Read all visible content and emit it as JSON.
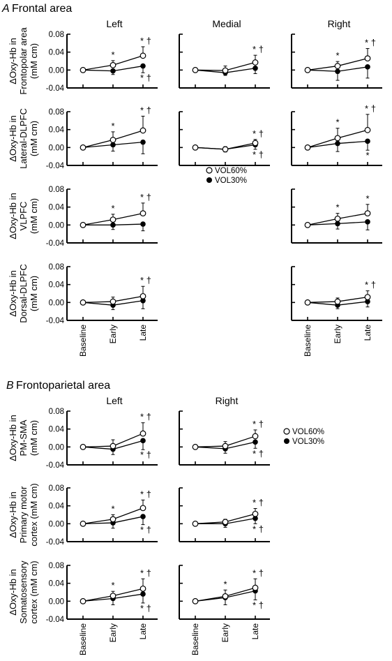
{
  "sections": [
    {
      "letter": "A",
      "title": "Frontal area"
    },
    {
      "letter": "B",
      "title": "Frontoparietal area"
    }
  ],
  "legends": [
    {
      "items": [
        {
          "marker": "open",
          "label": "VOL60%"
        },
        {
          "marker": "filled",
          "label": "VOL30%"
        }
      ]
    },
    {
      "items": [
        {
          "marker": "open",
          "label": "VOL60%"
        },
        {
          "marker": "filled",
          "label": "VOL30%"
        }
      ]
    }
  ],
  "chart_data": [
    {
      "type": "line",
      "section": "A",
      "column": "Left",
      "ylabel": [
        "ΔOxy-Hb in",
        "Frontopolar area",
        "(mM cm)"
      ],
      "x": [
        "Baseline",
        "Early",
        "Late"
      ],
      "ylim": [
        -0.04,
        0.08
      ],
      "yticks": [
        "0.08",
        "0.04",
        "0.00",
        "-0.04"
      ],
      "series": [
        {
          "name": "VOL60%",
          "marker": "open",
          "values": [
            0,
            0.011,
            0.032
          ],
          "errors": [
            0,
            0.01,
            0.02
          ]
        },
        {
          "name": "VOL30%",
          "marker": "filled",
          "values": [
            0,
            -0.002,
            0.009
          ],
          "errors": [
            0,
            0.008,
            0.015
          ]
        }
      ],
      "annotations": [
        {
          "x": "Early",
          "series": "VOL60%",
          "text": "*"
        },
        {
          "x": "Late",
          "series": "VOL60%",
          "text": "* †"
        },
        {
          "x": "Late",
          "series": "VOL30%",
          "text": "* †"
        }
      ]
    },
    {
      "type": "line",
      "section": "A",
      "column": "Medial",
      "ylabel": null,
      "x": [
        "Baseline",
        "Early",
        "Late"
      ],
      "ylim": [
        -0.04,
        0.08
      ],
      "yticks": null,
      "series": [
        {
          "name": "VOL60%",
          "marker": "open",
          "values": [
            0,
            -0.001,
            0.017
          ],
          "errors": [
            0,
            0.01,
            0.016
          ]
        },
        {
          "name": "VOL30%",
          "marker": "filled",
          "values": [
            0,
            -0.006,
            0.004
          ],
          "errors": [
            0,
            0.006,
            0.012
          ]
        }
      ],
      "annotations": [
        {
          "x": "Late",
          "series": "VOL60%",
          "text": "* †"
        }
      ]
    },
    {
      "type": "line",
      "section": "A",
      "column": "Right",
      "ylabel": null,
      "x": [
        "Baseline",
        "Early",
        "Late"
      ],
      "ylim": [
        -0.04,
        0.08
      ],
      "yticks": null,
      "series": [
        {
          "name": "VOL60%",
          "marker": "open",
          "values": [
            0,
            0.009,
            0.026
          ],
          "errors": [
            0,
            0.01,
            0.022
          ]
        },
        {
          "name": "VOL30%",
          "marker": "filled",
          "values": [
            0,
            -0.003,
            0.007
          ],
          "errors": [
            0,
            0.02,
            0.025
          ]
        }
      ],
      "annotations": [
        {
          "x": "Early",
          "series": "VOL60%",
          "text": "*"
        },
        {
          "x": "Late",
          "series": "VOL60%",
          "text": "* †"
        }
      ]
    },
    {
      "type": "line",
      "section": "A",
      "column": "Left",
      "ylabel": [
        "ΔOxy-Hb in",
        "Lateral-DLPFC",
        "(mM cm)"
      ],
      "x": [
        "Baseline",
        "Early",
        "Late"
      ],
      "ylim": [
        -0.04,
        0.08
      ],
      "yticks": [
        "0.08",
        "0.04",
        "0.00",
        "-0.04"
      ],
      "series": [
        {
          "name": "VOL60%",
          "marker": "open",
          "values": [
            0,
            0.017,
            0.038
          ],
          "errors": [
            0,
            0.018,
            0.032
          ]
        },
        {
          "name": "VOL30%",
          "marker": "filled",
          "values": [
            0,
            0.006,
            0.012
          ],
          "errors": [
            0,
            0.014,
            0.026
          ]
        }
      ],
      "annotations": [
        {
          "x": "Early",
          "series": "VOL60%",
          "text": "*"
        },
        {
          "x": "Late",
          "series": "VOL60%",
          "text": "* †"
        }
      ]
    },
    {
      "type": "line",
      "section": "A",
      "column": "Right",
      "ylabel": null,
      "x": [
        "Baseline",
        "Early",
        "Late"
      ],
      "ylim": [
        -0.04,
        0.08
      ],
      "yticks": null,
      "series": [
        {
          "name": "VOL60%",
          "marker": "open",
          "values": [
            0,
            0.021,
            0.039
          ],
          "errors": [
            0,
            0.022,
            0.035
          ]
        },
        {
          "name": "VOL30%",
          "marker": "filled",
          "values": [
            0,
            0.009,
            0.014
          ],
          "errors": [
            0,
            0.018,
            0.02
          ]
        }
      ],
      "annotations": [
        {
          "x": "Early",
          "series": "VOL60%",
          "text": "*"
        },
        {
          "x": "Late",
          "series": "VOL60%",
          "text": "* †"
        },
        {
          "x": "Late",
          "series": "VOL30%",
          "text": "*"
        }
      ]
    },
    {
      "type": "line",
      "section": "A",
      "column": "Left",
      "ylabel": [
        "ΔOxy-Hb in",
        "VLPFC",
        "(mM cm)"
      ],
      "x": [
        "Baseline",
        "Early",
        "Late"
      ],
      "ylim": [
        -0.04,
        0.08
      ],
      "yticks": [
        "0.08",
        "0.04",
        "0.00",
        "-0.04"
      ],
      "series": [
        {
          "name": "VOL60%",
          "marker": "open",
          "values": [
            0,
            0.012,
            0.026
          ],
          "errors": [
            0,
            0.012,
            0.023
          ]
        },
        {
          "name": "VOL30%",
          "marker": "filled",
          "values": [
            0,
            0.0,
            0.002
          ],
          "errors": [
            0,
            0.01,
            0.015
          ]
        }
      ],
      "annotations": [
        {
          "x": "Early",
          "series": "VOL60%",
          "text": "*"
        },
        {
          "x": "Late",
          "series": "VOL60%",
          "text": "* †"
        }
      ]
    },
    {
      "type": "line",
      "section": "A",
      "column": "Right",
      "ylabel": null,
      "x": [
        "Baseline",
        "Early",
        "Late"
      ],
      "ylim": [
        -0.04,
        0.08
      ],
      "yticks": null,
      "series": [
        {
          "name": "VOL60%",
          "marker": "open",
          "values": [
            0,
            0.014,
            0.026
          ],
          "errors": [
            0,
            0.012,
            0.02
          ]
        },
        {
          "name": "VOL30%",
          "marker": "filled",
          "values": [
            0,
            0.003,
            0.007
          ],
          "errors": [
            0,
            0.012,
            0.018
          ]
        }
      ],
      "annotations": [
        {
          "x": "Early",
          "series": "VOL60%",
          "text": "*"
        },
        {
          "x": "Late",
          "series": "VOL60%",
          "text": "*"
        }
      ]
    },
    {
      "type": "line",
      "section": "A",
      "column": "Left",
      "ylabel": [
        "ΔOxy-Hb in",
        "Dorsal-DLPFC",
        "(mM cm)"
      ],
      "x": [
        "Baseline",
        "Early",
        "Late"
      ],
      "ylim": [
        -0.04,
        0.08
      ],
      "yticks": [
        "0.08",
        "0.04",
        "0.00",
        "-0.04"
      ],
      "series": [
        {
          "name": "VOL60%",
          "marker": "open",
          "values": [
            0,
            0.002,
            0.014
          ],
          "errors": [
            0,
            0.01,
            0.022
          ]
        },
        {
          "name": "VOL30%",
          "marker": "filled",
          "values": [
            0,
            -0.006,
            0.004
          ],
          "errors": [
            0,
            0.01,
            0.018
          ]
        }
      ],
      "annotations": [
        {
          "x": "Late",
          "series": "VOL60%",
          "text": "* †"
        }
      ]
    },
    {
      "type": "line",
      "section": "A",
      "column": "Medial",
      "ylabel": null,
      "x": [
        "Baseline",
        "Early",
        "Late"
      ],
      "ylim": [
        -0.04,
        0.08
      ],
      "yticks": null,
      "series": [
        {
          "name": "VOL60%",
          "marker": "open",
          "values": [
            0,
            -0.004,
            0.01
          ],
          "errors": [
            0,
            0.006,
            0.008
          ]
        },
        {
          "name": "VOL30%",
          "marker": "filled",
          "values": [
            0,
            -0.004,
            0.006
          ],
          "errors": [
            0,
            0.006,
            0.01
          ]
        }
      ],
      "annotations": [
        {
          "x": "Late",
          "series": "VOL60%",
          "text": "* †"
        },
        {
          "x": "Late",
          "series": "VOL30%",
          "text": "* †"
        }
      ]
    },
    {
      "type": "line",
      "section": "A",
      "column": "Right",
      "ylabel": null,
      "x": [
        "Baseline",
        "Early",
        "Late"
      ],
      "ylim": [
        -0.04,
        0.08
      ],
      "yticks": null,
      "series": [
        {
          "name": "VOL60%",
          "marker": "open",
          "values": [
            0,
            0.002,
            0.012
          ],
          "errors": [
            0,
            0.008,
            0.014
          ]
        },
        {
          "name": "VOL30%",
          "marker": "filled",
          "values": [
            0,
            -0.006,
            0.002
          ],
          "errors": [
            0,
            0.008,
            0.012
          ]
        }
      ],
      "annotations": [
        {
          "x": "Late",
          "series": "VOL60%",
          "text": "* †"
        }
      ]
    },
    {
      "type": "line",
      "section": "B",
      "column": "Left",
      "ylabel": [
        "ΔOxy-Hb in",
        "PM-SMA",
        "(mM cm)"
      ],
      "x": [
        "Baseline",
        "Early",
        "Late"
      ],
      "ylim": [
        -0.04,
        0.08
      ],
      "yticks": [
        "0.08",
        "0.04",
        "0.00",
        "-0.04"
      ],
      "series": [
        {
          "name": "VOL60%",
          "marker": "open",
          "values": [
            0,
            0.002,
            0.03
          ],
          "errors": [
            0,
            0.014,
            0.024
          ]
        },
        {
          "name": "VOL30%",
          "marker": "filled",
          "values": [
            0,
            -0.005,
            0.014
          ],
          "errors": [
            0,
            0.012,
            0.02
          ]
        }
      ],
      "annotations": [
        {
          "x": "Late",
          "series": "VOL60%",
          "text": "* †"
        },
        {
          "x": "Late",
          "series": "VOL30%",
          "text": "* †"
        }
      ]
    },
    {
      "type": "line",
      "section": "B",
      "column": "Right",
      "ylabel": null,
      "x": [
        "Baseline",
        "Early",
        "Late"
      ],
      "ylim": [
        -0.04,
        0.08
      ],
      "yticks": null,
      "series": [
        {
          "name": "VOL60%",
          "marker": "open",
          "values": [
            0,
            0.002,
            0.024
          ],
          "errors": [
            0,
            0.01,
            0.014
          ]
        },
        {
          "name": "VOL30%",
          "marker": "filled",
          "values": [
            0,
            -0.004,
            0.011
          ],
          "errors": [
            0,
            0.01,
            0.014
          ]
        }
      ],
      "annotations": [
        {
          "x": "Late",
          "series": "VOL60%",
          "text": "* †"
        },
        {
          "x": "Late",
          "series": "VOL30%",
          "text": "* †"
        }
      ]
    },
    {
      "type": "line",
      "section": "B",
      "column": "Left",
      "ylabel": [
        "ΔOxy-Hb in",
        "Primary motor",
        "cortex (mM cm)"
      ],
      "x": [
        "Baseline",
        "Early",
        "Late"
      ],
      "ylim": [
        -0.04,
        0.08
      ],
      "yticks": [
        "0.08",
        "0.04",
        "0.00",
        "-0.04"
      ],
      "series": [
        {
          "name": "VOL60%",
          "marker": "open",
          "values": [
            0,
            0.01,
            0.035
          ],
          "errors": [
            0,
            0.01,
            0.018
          ]
        },
        {
          "name": "VOL30%",
          "marker": "filled",
          "values": [
            0,
            0.002,
            0.016
          ],
          "errors": [
            0,
            0.012,
            0.018
          ]
        }
      ],
      "annotations": [
        {
          "x": "Early",
          "series": "VOL60%",
          "text": "*"
        },
        {
          "x": "Late",
          "series": "VOL60%",
          "text": "* †"
        },
        {
          "x": "Late",
          "series": "VOL30%",
          "text": "* †"
        }
      ]
    },
    {
      "type": "line",
      "section": "B",
      "column": "Right",
      "ylabel": null,
      "x": [
        "Baseline",
        "Early",
        "Late"
      ],
      "ylim": [
        -0.04,
        0.08
      ],
      "yticks": null,
      "series": [
        {
          "name": "VOL60%",
          "marker": "open",
          "values": [
            0,
            0.004,
            0.022
          ],
          "errors": [
            0,
            0.006,
            0.012
          ]
        },
        {
          "name": "VOL30%",
          "marker": "filled",
          "values": [
            0,
            0.0,
            0.012
          ],
          "errors": [
            0,
            0.008,
            0.012
          ]
        }
      ],
      "annotations": [
        {
          "x": "Late",
          "series": "VOL60%",
          "text": "* †"
        },
        {
          "x": "Late",
          "series": "VOL30%",
          "text": "* †"
        }
      ]
    },
    {
      "type": "line",
      "section": "B",
      "column": "Left",
      "ylabel": [
        "ΔOxy-Hb in",
        "Somatosensory",
        "cortex (mM cm)"
      ],
      "x": [
        "Baseline",
        "Early",
        "Late"
      ],
      "ylim": [
        -0.04,
        0.08
      ],
      "yticks": [
        "0.08",
        "0.04",
        "0.00",
        "-0.04"
      ],
      "series": [
        {
          "name": "VOL60%",
          "marker": "open",
          "values": [
            0,
            0.012,
            0.028
          ],
          "errors": [
            0,
            0.01,
            0.022
          ]
        },
        {
          "name": "VOL30%",
          "marker": "filled",
          "values": [
            0,
            0.006,
            0.016
          ],
          "errors": [
            0,
            0.014,
            0.02
          ]
        }
      ],
      "annotations": [
        {
          "x": "Early",
          "series": "VOL60%",
          "text": "*"
        },
        {
          "x": "Late",
          "series": "VOL60%",
          "text": "* †"
        },
        {
          "x": "Late",
          "series": "VOL30%",
          "text": "* †"
        }
      ]
    },
    {
      "type": "line",
      "section": "B",
      "column": "Right",
      "ylabel": null,
      "x": [
        "Baseline",
        "Early",
        "Late"
      ],
      "ylim": [
        -0.04,
        0.08
      ],
      "yticks": null,
      "series": [
        {
          "name": "VOL60%",
          "marker": "open",
          "values": [
            0,
            0.011,
            0.03
          ],
          "errors": [
            0,
            0.014,
            0.02
          ]
        },
        {
          "name": "VOL30%",
          "marker": "filled",
          "values": [
            0,
            0.008,
            0.023
          ],
          "errors": [
            0,
            0.016,
            0.02
          ]
        }
      ],
      "annotations": [
        {
          "x": "Early",
          "series": "VOL60%",
          "text": "*"
        },
        {
          "x": "Late",
          "series": "VOL60%",
          "text": "* †"
        },
        {
          "x": "Late",
          "series": "VOL30%",
          "text": "* †"
        }
      ]
    }
  ]
}
